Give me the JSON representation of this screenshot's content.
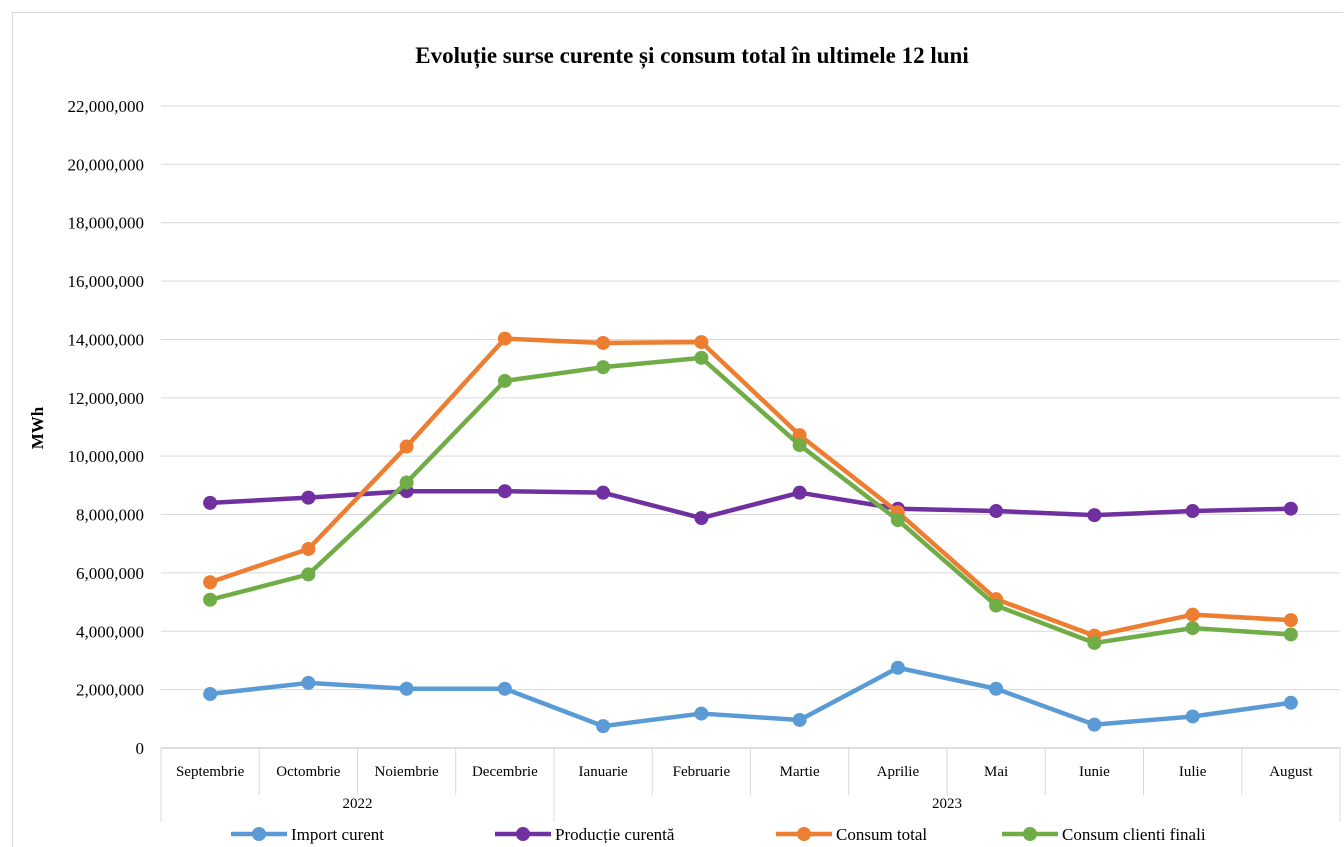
{
  "chart_data": {
    "type": "line",
    "title": "Evoluție surse curente și consum total în ultimele 12 luni",
    "ylabel": "MWh",
    "ylim": [
      0,
      22000000
    ],
    "yticks": [
      0,
      2000000,
      4000000,
      6000000,
      8000000,
      10000000,
      12000000,
      14000000,
      16000000,
      18000000,
      20000000,
      22000000
    ],
    "ytick_labels": [
      "0",
      "2,000,000",
      "4,000,000",
      "6,000,000",
      "8,000,000",
      "10,000,000",
      "12,000,000",
      "14,000,000",
      "16,000,000",
      "18,000,000",
      "20,000,000",
      "22,000,000"
    ],
    "categories": [
      "Septembrie",
      "Octombrie",
      "Noiembrie",
      "Decembrie",
      "Ianuarie",
      "Februarie",
      "Martie",
      "Aprilie",
      "Mai",
      "Iunie",
      "Iulie",
      "August"
    ],
    "groups": [
      {
        "label": "2022",
        "span": 4
      },
      {
        "label": "2023",
        "span": 8
      }
    ],
    "grid": true,
    "legend_position": "bottom",
    "series": [
      {
        "name": "Import curent",
        "color": "#5b9bd5",
        "values": [
          1850000,
          2230000,
          2030000,
          2030000,
          750000,
          1180000,
          960000,
          2750000,
          2030000,
          800000,
          1080000,
          1550000
        ]
      },
      {
        "name": "Producție curentă",
        "color": "#7030a0",
        "values": [
          8400000,
          8580000,
          8800000,
          8800000,
          8750000,
          7880000,
          8750000,
          8200000,
          8120000,
          7980000,
          8120000,
          8200000
        ]
      },
      {
        "name": "Consum total",
        "color": "#ed7d31",
        "values": [
          5680000,
          6820000,
          10330000,
          14030000,
          13880000,
          13910000,
          10720000,
          8080000,
          5100000,
          3850000,
          4570000,
          4380000
        ]
      },
      {
        "name": "Consum clienti finali",
        "color": "#70ad47",
        "values": [
          5080000,
          5950000,
          9100000,
          12580000,
          13050000,
          13370000,
          10380000,
          7810000,
          4880000,
          3600000,
          4110000,
          3890000
        ]
      }
    ]
  }
}
